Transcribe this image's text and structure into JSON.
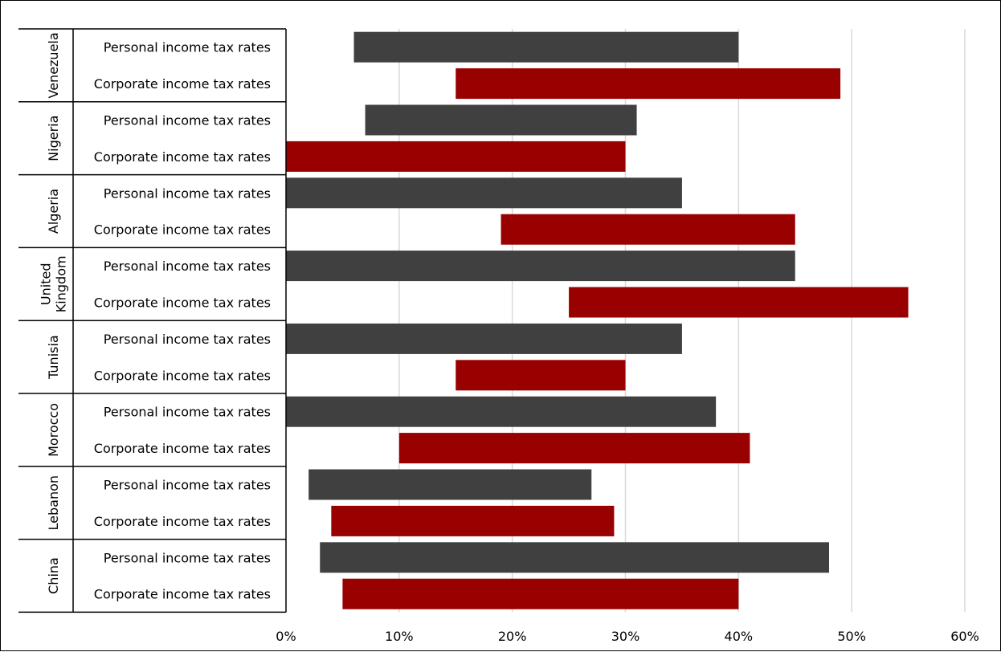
{
  "chart_data": {
    "type": "bar",
    "orientation": "horizontal",
    "bar_style": "floating-range",
    "x_axis": {
      "ticks": [
        "0%",
        "10%",
        "20%",
        "30%",
        "40%",
        "50%",
        "60%"
      ],
      "range": [
        0,
        60
      ],
      "gridlines": true
    },
    "groups": [
      {
        "name": "Venezuela",
        "name_lines": [
          "Venezuela"
        ],
        "rows": [
          {
            "label": "Personal income tax rates",
            "series": "personal",
            "range": [
              6,
              40
            ]
          },
          {
            "label": "Corporate income tax rates",
            "series": "corporate",
            "range": [
              15,
              49
            ]
          }
        ]
      },
      {
        "name": "Nigeria",
        "name_lines": [
          "Nigeria"
        ],
        "rows": [
          {
            "label": "Personal income tax rates",
            "series": "personal",
            "range": [
              7,
              31
            ]
          },
          {
            "label": "Corporate income tax rates",
            "series": "corporate",
            "range": [
              0,
              30
            ]
          }
        ]
      },
      {
        "name": "Algeria",
        "name_lines": [
          "Algeria"
        ],
        "rows": [
          {
            "label": "Personal income tax rates",
            "series": "personal",
            "range": [
              0,
              35
            ]
          },
          {
            "label": "Corporate income tax rates",
            "series": "corporate",
            "range": [
              19,
              45
            ]
          }
        ]
      },
      {
        "name": "United Kingdom",
        "name_lines": [
          "United",
          "Kingdom"
        ],
        "rows": [
          {
            "label": "Personal income tax rates",
            "series": "personal",
            "range": [
              0,
              45
            ]
          },
          {
            "label": "Corporate income tax rates",
            "series": "corporate",
            "range": [
              25,
              55
            ]
          }
        ]
      },
      {
        "name": "Tunisia",
        "name_lines": [
          "Tunisia"
        ],
        "rows": [
          {
            "label": "Personal income tax rates",
            "series": "personal",
            "range": [
              0,
              35
            ]
          },
          {
            "label": "Corporate income tax rates",
            "series": "corporate",
            "range": [
              15,
              30
            ]
          }
        ]
      },
      {
        "name": "Morocco",
        "name_lines": [
          "Morocco"
        ],
        "rows": [
          {
            "label": "Personal income tax rates",
            "series": "personal",
            "range": [
              0,
              38
            ]
          },
          {
            "label": "Corporate income tax rates",
            "series": "corporate",
            "range": [
              10,
              41
            ]
          }
        ]
      },
      {
        "name": "Lebanon",
        "name_lines": [
          "Lebanon"
        ],
        "rows": [
          {
            "label": "Personal income tax rates",
            "series": "personal",
            "range": [
              2,
              27
            ]
          },
          {
            "label": "Corporate income tax rates",
            "series": "corporate",
            "range": [
              4,
              29
            ]
          }
        ]
      },
      {
        "name": "China",
        "name_lines": [
          "China"
        ],
        "rows": [
          {
            "label": "Personal income tax rates",
            "series": "personal",
            "range": [
              3,
              48
            ]
          },
          {
            "label": "Corporate income tax rates",
            "series": "corporate",
            "range": [
              5,
              40
            ]
          }
        ]
      }
    ],
    "colors": {
      "personal": "#404040",
      "corporate": "#990000",
      "gridline": "#d9d9d9",
      "axis": "#000000"
    }
  }
}
